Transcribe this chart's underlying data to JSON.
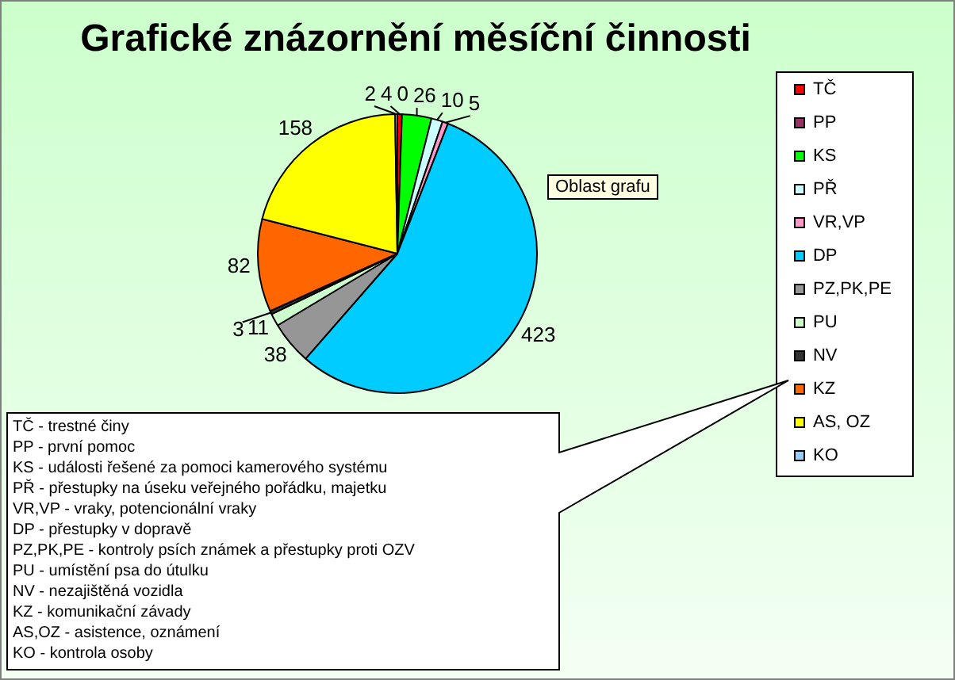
{
  "chart_data": {
    "type": "pie",
    "title": "Grafické znázornění měsíční činnosti",
    "categories": [
      "TČ",
      "PP",
      "KS",
      "PŘ",
      "VR,VP",
      "DP",
      "PZ,PK,PE",
      "PU",
      "NV",
      "KZ",
      "AS, OZ",
      "KO"
    ],
    "values": [
      4,
      0,
      26,
      10,
      5,
      423,
      38,
      11,
      3,
      82,
      158,
      2
    ],
    "value_labels": [
      "4",
      "0",
      "26",
      "10",
      "5",
      "423",
      "38",
      "11",
      "3",
      "82",
      "158",
      "2"
    ],
    "colors": [
      "#ff0000",
      "#993366",
      "#00ff00",
      "#ccffff",
      "#ff99cc",
      "#00ccff",
      "#969696",
      "#ccffcc",
      "#333333",
      "#ff6600",
      "#ffff00",
      "#99ccff"
    ],
    "legend": "right",
    "annotations": [
      "TČ - trestné činy",
      "PP - první pomoc",
      "KS - události řešené za pomoci kamerového systému",
      "PŘ - přestupky na úseku veřejného pořádku, majetku",
      "VR,VP - vraky, potencionální vraky",
      "DP - přestupky v dopravě",
      "PZ,PK,PE - kontroly psích známek a přestupky proti OZV",
      "PU - umístění psa do útulku",
      "NV - nezajištěná vozidla",
      "KZ - komunikační závady",
      "AS,OZ - asistence, oznámení",
      "KO - kontrola osoby",
      "Oblast grafu"
    ]
  }
}
